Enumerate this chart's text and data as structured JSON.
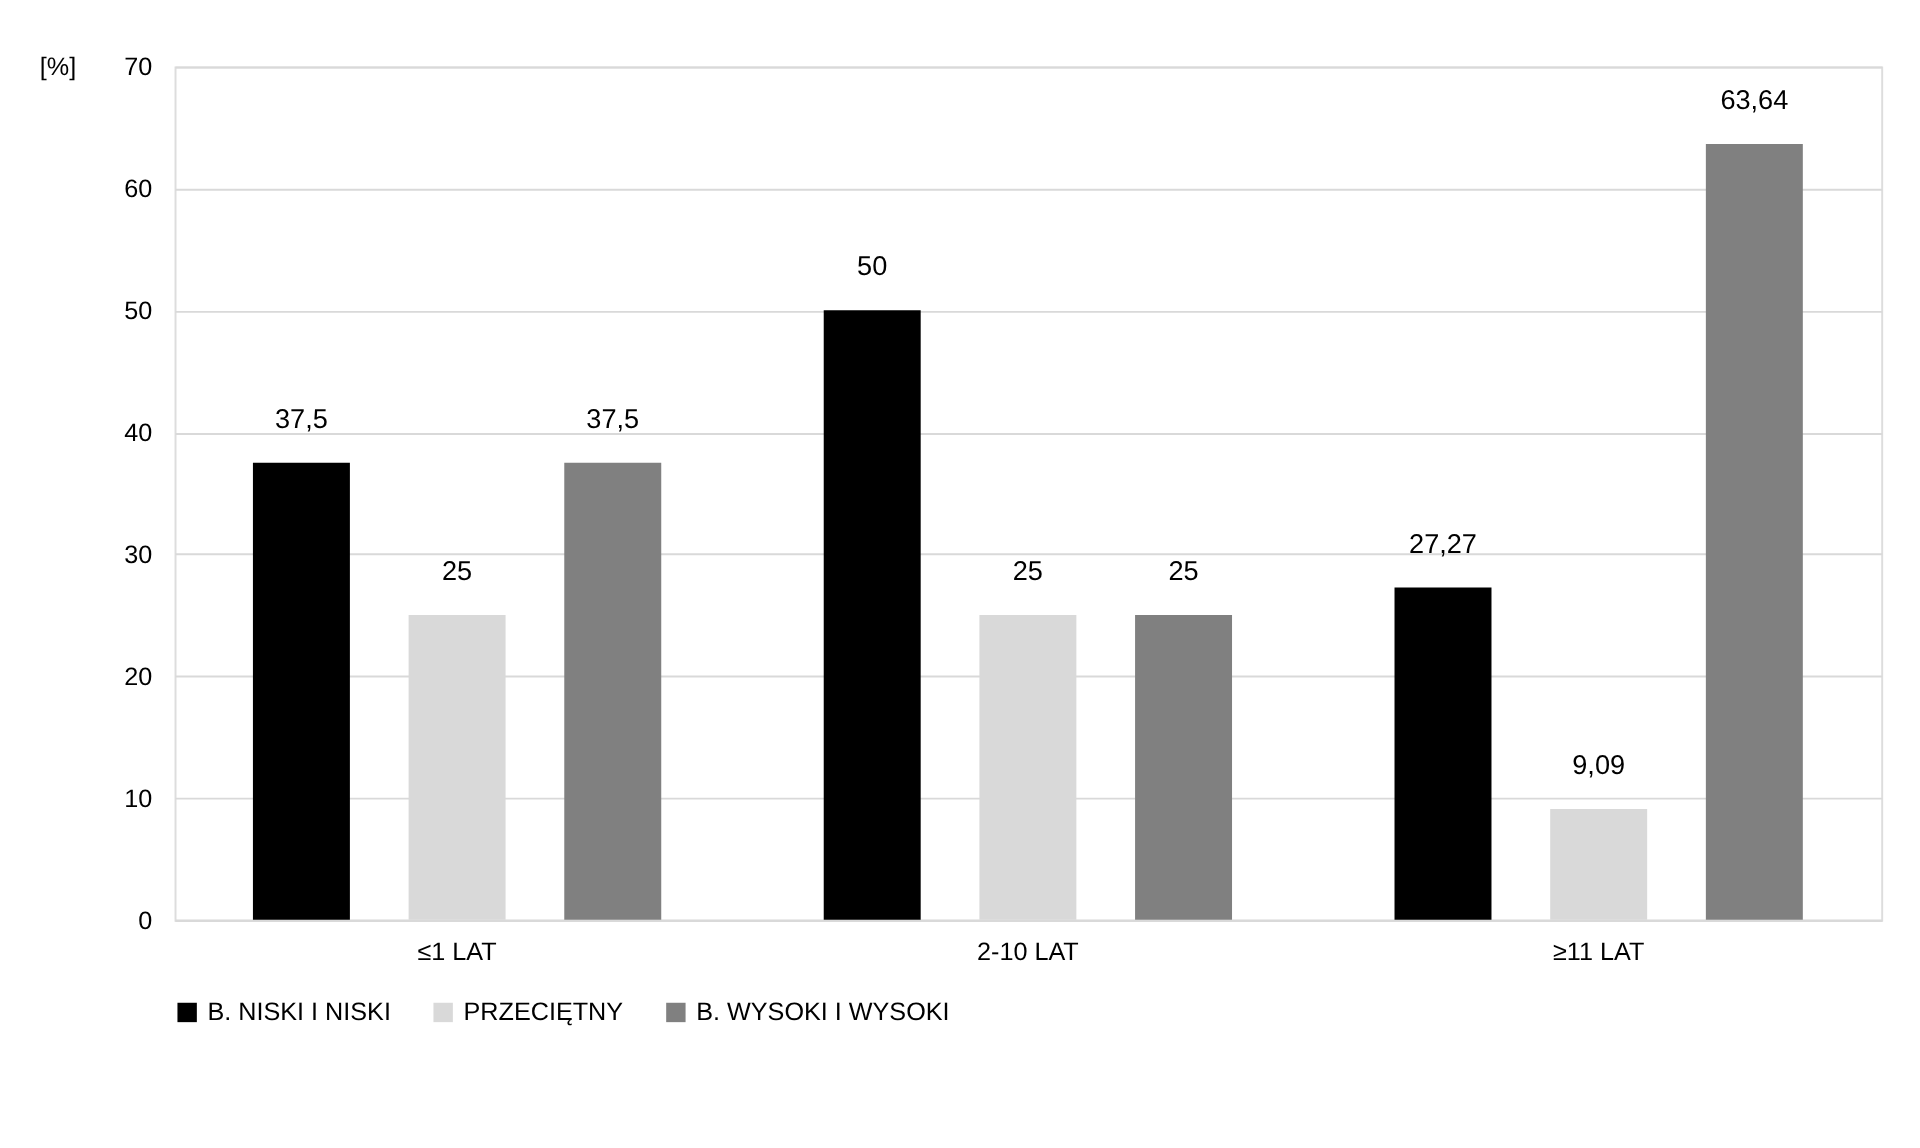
{
  "chart_data": {
    "type": "bar",
    "ylabel": "[%]",
    "categories": [
      "≤1 LAT",
      "2-10 LAT",
      "≥11 LAT"
    ],
    "series": [
      {
        "name": "B. NISKI I NISKI",
        "color": "#000000",
        "values": [
          37.5,
          50,
          27.27
        ],
        "value_labels": [
          "37,5",
          "50",
          "27,27"
        ]
      },
      {
        "name": "PRZECIĘTNY",
        "color": "#d9d9d9",
        "values": [
          25,
          25,
          9.09
        ],
        "value_labels": [
          "25",
          "25",
          "9,09"
        ]
      },
      {
        "name": "B. WYSOKI I WYSOKI",
        "color": "#808080",
        "values": [
          37.5,
          25,
          63.64
        ],
        "value_labels": [
          "37,5",
          "25",
          "63,64"
        ]
      }
    ],
    "ylim": [
      0,
      70
    ],
    "yticks": [
      0,
      10,
      20,
      30,
      40,
      50,
      60,
      70
    ],
    "grid": "y",
    "legend": "bottom"
  }
}
